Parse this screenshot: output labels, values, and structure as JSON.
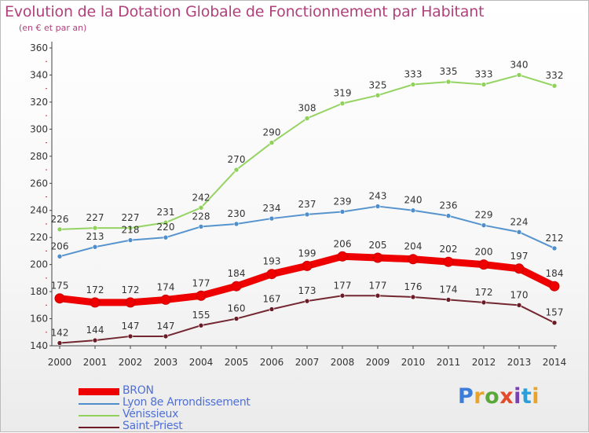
{
  "header": {
    "title": "Evolution de la Dotation Globale de Fonctionnement par Habitant",
    "subtitle": "(en € et par an)"
  },
  "logo": {
    "text": "Proxiti",
    "colors": [
      "#3b7dd8",
      "#e8a428",
      "#5aa83a",
      "#e34b2a",
      "#7a3fb0",
      "#2b9fd9",
      "#e8a428"
    ]
  },
  "chart_data": {
    "type": "line",
    "x": [
      "2000",
      "2001",
      "2002",
      "2003",
      "2004",
      "2005",
      "2006",
      "2007",
      "2008",
      "2009",
      "2010",
      "2011",
      "2012",
      "2013",
      "2014"
    ],
    "ylim": [
      140,
      360
    ],
    "yticks": [
      140,
      160,
      180,
      200,
      220,
      240,
      260,
      280,
      300,
      320,
      340,
      360
    ],
    "grid": false,
    "legend_position": "bottom-left",
    "series": [
      {
        "name": "BRON",
        "color": "#ee0000",
        "values": [
          175,
          172,
          172,
          174,
          177,
          184,
          193,
          199,
          206,
          205,
          204,
          202,
          200,
          197,
          184
        ]
      },
      {
        "name": "Lyon 8e  Arrondissement",
        "color": "#4e8ecb",
        "values": [
          206,
          213,
          218,
          220,
          228,
          230,
          234,
          237,
          239,
          243,
          240,
          236,
          229,
          224,
          212
        ]
      },
      {
        "name": "Vénissieux",
        "color": "#8fd15a",
        "values": [
          226,
          227,
          227,
          231,
          242,
          270,
          290,
          308,
          319,
          325,
          333,
          335,
          333,
          340,
          332
        ]
      },
      {
        "name": "Saint-Priest",
        "color": "#6b1b26",
        "values": [
          142,
          144,
          147,
          147,
          155,
          160,
          167,
          173,
          177,
          177,
          176,
          174,
          172,
          170,
          157
        ]
      }
    ]
  }
}
